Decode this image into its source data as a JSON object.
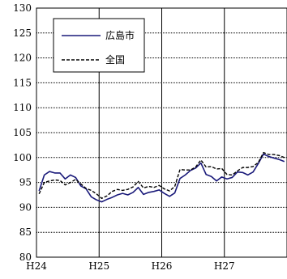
{
  "chart_data": {
    "type": "line",
    "title": "",
    "xlabel": "",
    "ylabel": "",
    "ylim": [
      80,
      130
    ],
    "yticks": [
      80,
      85,
      90,
      95,
      100,
      105,
      110,
      115,
      120,
      125,
      130
    ],
    "grid": true,
    "legend_position": "top-left",
    "x_tick_labels": [
      "H24",
      "H25",
      "H26",
      "H27"
    ],
    "series": [
      {
        "name": "広島市",
        "style": "solid",
        "color": "#1a1a7a",
        "values": [
          93.3,
          96.5,
          97.2,
          96.9,
          96.9,
          95.7,
          96.5,
          96.0,
          94.3,
          93.7,
          92.1,
          91.5,
          91.1,
          91.6,
          92.0,
          92.5,
          92.8,
          92.5,
          93.0,
          94.0,
          92.6,
          93.0,
          93.2,
          93.5,
          92.8,
          92.2,
          92.9,
          95.8,
          96.5,
          97.4,
          97.9,
          98.9,
          96.6,
          96.2,
          95.3,
          96.1,
          95.7,
          96.0,
          97.1,
          97.0,
          96.5,
          97.1,
          98.8,
          100.7,
          100.2,
          99.9,
          99.6,
          99.2
        ]
      },
      {
        "name": "全国",
        "style": "dashed",
        "color": "#000000",
        "values": [
          92.7,
          95.0,
          95.3,
          95.5,
          95.4,
          94.5,
          95.0,
          95.6,
          94.7,
          93.8,
          93.4,
          92.7,
          91.8,
          92.3,
          93.2,
          93.6,
          93.4,
          93.6,
          94.1,
          95.2,
          93.9,
          94.2,
          94.0,
          94.4,
          93.7,
          93.3,
          94.2,
          97.6,
          97.5,
          97.5,
          98.1,
          99.5,
          98.1,
          98.2,
          97.7,
          97.8,
          96.6,
          96.5,
          97.3,
          98.0,
          98.0,
          98.2,
          99.0,
          101.0,
          100.6,
          100.6,
          100.4,
          100.0
        ]
      }
    ]
  }
}
